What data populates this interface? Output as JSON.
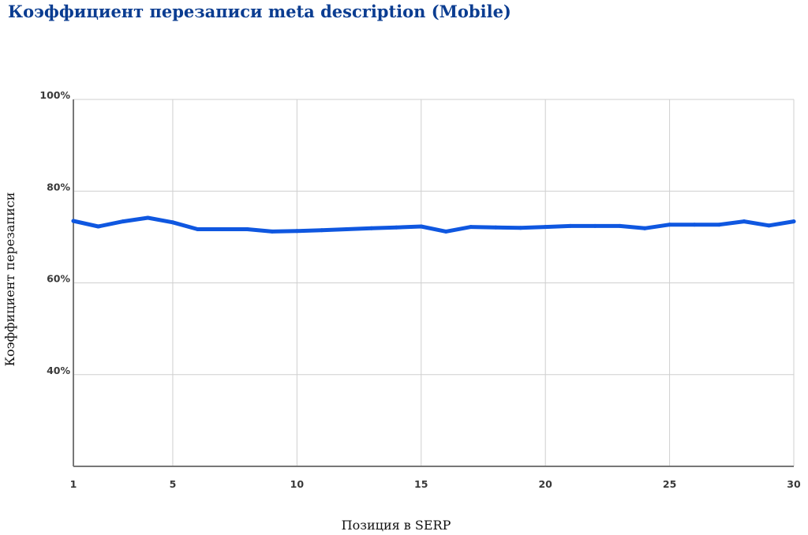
{
  "chart_data": {
    "type": "line",
    "title": "Коэффициент перезаписи meta description (Mobile)",
    "xlabel": "Позиция в SERP",
    "ylabel": "Коэффициент перезаписи",
    "x_ticks": [
      "1",
      "5",
      "10",
      "15",
      "20",
      "25",
      "30"
    ],
    "x_tick_values": [
      1,
      5,
      10,
      15,
      20,
      25,
      30
    ],
    "y_ticks": [
      "40%",
      "60%",
      "80%",
      "100%"
    ],
    "y_tick_values": [
      40,
      60,
      80,
      100
    ],
    "xlim": [
      1,
      30
    ],
    "ylim": [
      20,
      100
    ],
    "grid": true,
    "series": [
      {
        "color": "#0f57e0",
        "x": [
          1,
          2,
          3,
          4,
          5,
          6,
          7,
          8,
          9,
          10,
          11,
          12,
          13,
          14,
          15,
          16,
          17,
          18,
          19,
          20,
          21,
          22,
          23,
          24,
          25,
          26,
          27,
          28,
          29,
          30
        ],
        "values": [
          73.5,
          72.3,
          73.4,
          74.2,
          73.2,
          71.7,
          71.7,
          71.7,
          71.2,
          71.3,
          71.5,
          71.7,
          71.9,
          72.1,
          72.3,
          71.2,
          72.2,
          72.1,
          72.0,
          72.2,
          72.4,
          72.4,
          72.4,
          71.9,
          72.7,
          72.7,
          72.7,
          73.4,
          72.5,
          73.4
        ]
      }
    ]
  }
}
